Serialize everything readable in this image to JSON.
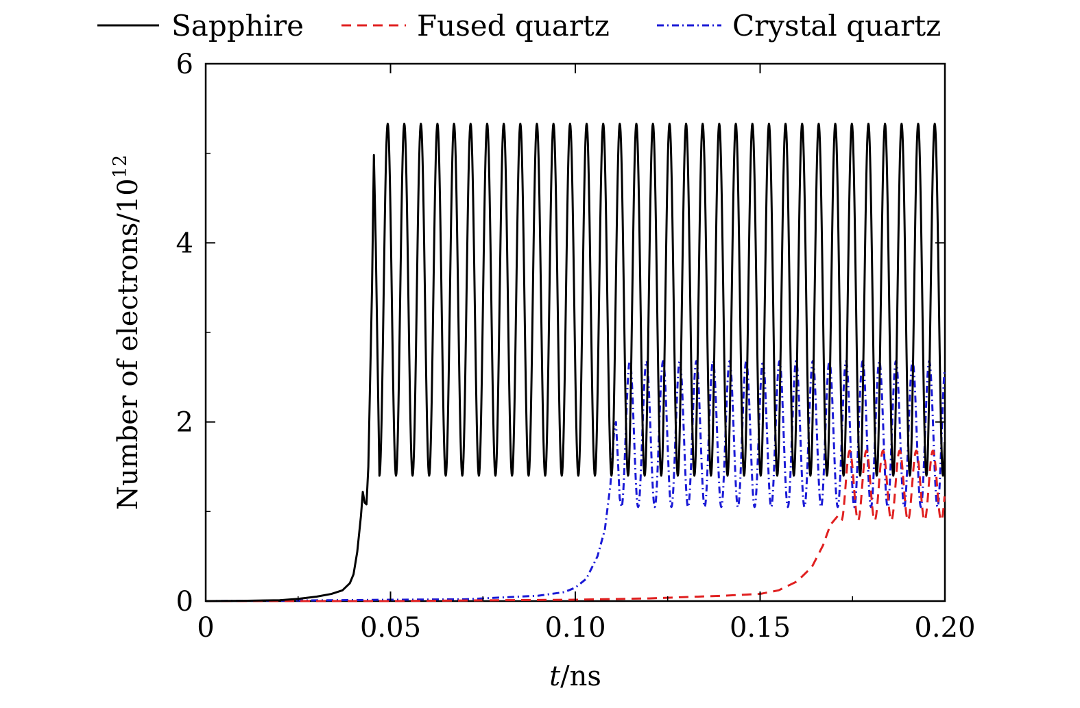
{
  "chart_data": {
    "type": "line",
    "xlabel_var": "t",
    "xlabel_unit": "/ns",
    "ylabel": "Number of electrons/10",
    "ylabel_exp": "12",
    "xlim": [
      0,
      0.2
    ],
    "ylim": [
      0,
      6
    ],
    "xticks": [
      0,
      0.05,
      0.1,
      0.15,
      0.2
    ],
    "xtick_labels": [
      "0",
      "0.05",
      "0.10",
      "0.15",
      "0.20"
    ],
    "yticks": [
      0,
      2,
      4,
      6
    ],
    "ytick_labels": [
      "0",
      "2",
      "4",
      "6"
    ],
    "legend_position": "top",
    "grid": false,
    "series": [
      {
        "name": "Sapphire",
        "color": "#000000",
        "dash": "solid",
        "rise": [
          [
            0,
            0
          ],
          [
            0.01,
            0.003
          ],
          [
            0.02,
            0.01
          ],
          [
            0.025,
            0.025
          ],
          [
            0.03,
            0.05
          ],
          [
            0.034,
            0.08
          ],
          [
            0.037,
            0.12
          ],
          [
            0.039,
            0.2
          ],
          [
            0.04,
            0.3
          ],
          [
            0.041,
            0.55
          ],
          [
            0.042,
            0.95
          ],
          [
            0.0425,
            1.22
          ],
          [
            0.043,
            1.1
          ],
          [
            0.0435,
            1.08
          ],
          [
            0.044,
            1.5
          ],
          [
            0.045,
            3.5
          ],
          [
            0.0455,
            4.98
          ],
          [
            0.046,
            4.0
          ]
        ],
        "osc": {
          "start": 0.047,
          "period": 0.004485,
          "min": 1.4,
          "max": 5.33
        }
      },
      {
        "name": "Fused quartz",
        "color": "#e02020",
        "dash": "14,9",
        "rise": [
          [
            0,
            0
          ],
          [
            0.05,
            0.0
          ],
          [
            0.08,
            0.01
          ],
          [
            0.1,
            0.015
          ],
          [
            0.12,
            0.03
          ],
          [
            0.14,
            0.06
          ],
          [
            0.15,
            0.08
          ],
          [
            0.155,
            0.12
          ],
          [
            0.16,
            0.22
          ],
          [
            0.164,
            0.38
          ],
          [
            0.167,
            0.62
          ],
          [
            0.169,
            0.85
          ],
          [
            0.171,
            0.95
          ],
          [
            0.172,
            0.9
          ]
        ],
        "osc": {
          "start": 0.172,
          "period": 0.0045,
          "min": 0.9,
          "max": 1.68
        }
      },
      {
        "name": "Crystal quartz",
        "color": "#1a1ad6",
        "dash": "10,5,2,5",
        "rise": [
          [
            0,
            0
          ],
          [
            0.02,
            0.005
          ],
          [
            0.05,
            0.015
          ],
          [
            0.07,
            0.02
          ],
          [
            0.08,
            0.04
          ],
          [
            0.09,
            0.06
          ],
          [
            0.097,
            0.1
          ],
          [
            0.1,
            0.15
          ],
          [
            0.103,
            0.25
          ],
          [
            0.106,
            0.5
          ],
          [
            0.108,
            0.8
          ],
          [
            0.1095,
            1.3
          ],
          [
            0.1105,
            1.9
          ],
          [
            0.111,
            2.0
          ],
          [
            0.1115,
            1.6
          ],
          [
            0.112,
            1.15
          ]
        ],
        "osc": {
          "start": 0.1125,
          "period": 0.0045,
          "min": 1.05,
          "max": 2.68
        }
      }
    ]
  }
}
